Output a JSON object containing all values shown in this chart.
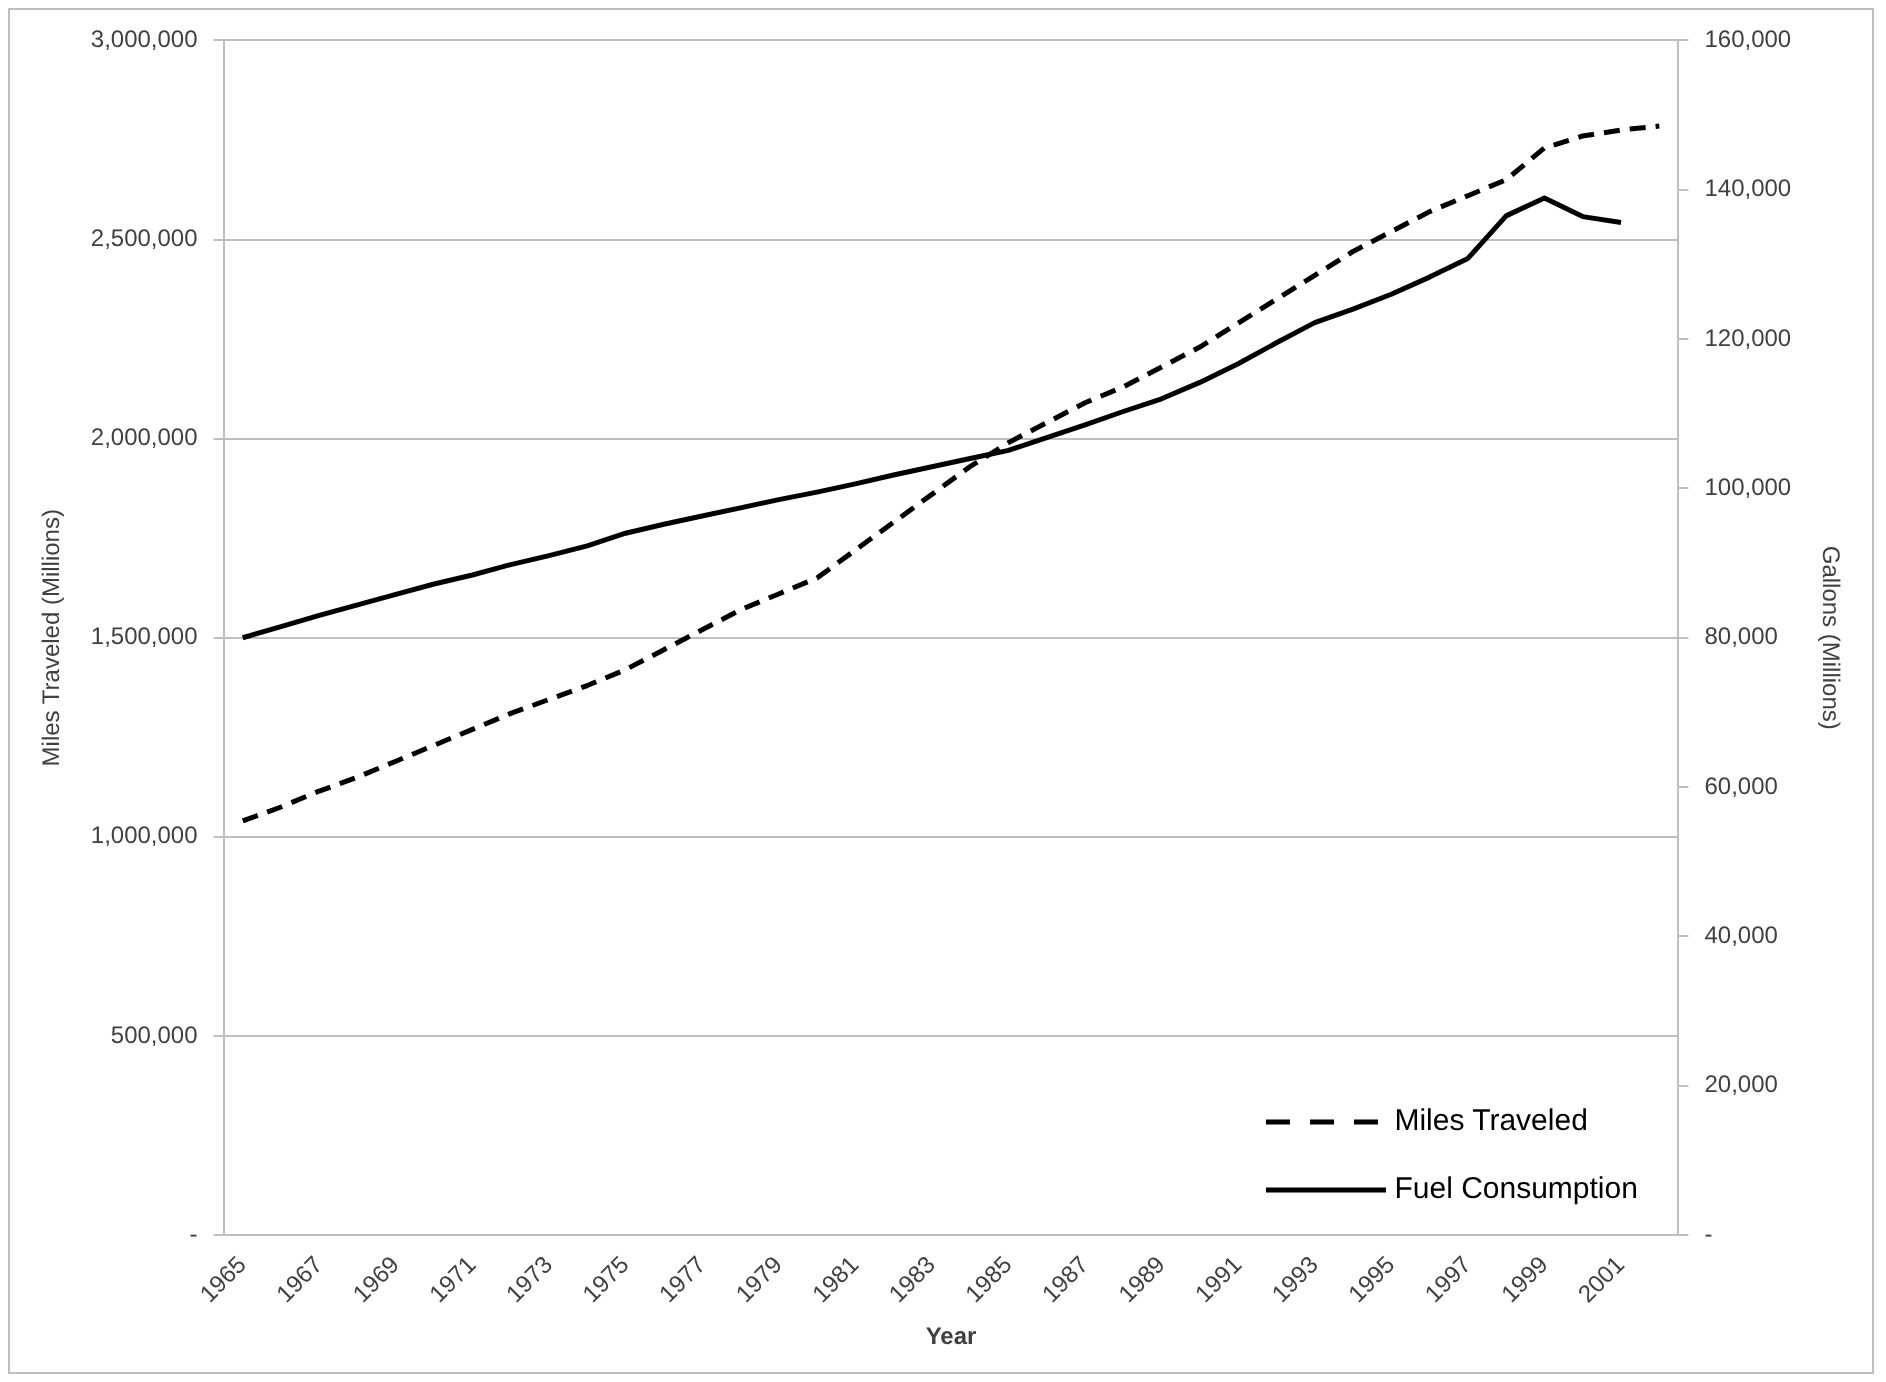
{
  "chart_data": {
    "type": "line",
    "xlabel": "Year",
    "ylabel": "Miles Traveled (Millions)",
    "y2label": "Gallons (Millions)",
    "categories": [
      "1965",
      null,
      "1967",
      null,
      "1969",
      null,
      "1971",
      null,
      "1973",
      null,
      "1975",
      null,
      "1977",
      null,
      "1979",
      null,
      "1981",
      null,
      "1983",
      null,
      "1985",
      null,
      "1987",
      null,
      "1989",
      null,
      "1991",
      null,
      "1993",
      null,
      "1995",
      null,
      "1997",
      null,
      "1999",
      null,
      "2001",
      null
    ],
    "series": [
      {
        "name": "Miles Traveled",
        "color": "#000000",
        "line_style": "dashed",
        "axis": "y",
        "values": [
          1040000,
          1075000,
          1115000,
          1150000,
          1190000,
          1230000,
          1270000,
          1310000,
          1345000,
          1380000,
          1420000,
          1470000,
          1520000,
          1570000,
          1610000,
          1650000,
          1720000,
          1790000,
          1860000,
          1930000,
          1990000,
          2040000,
          2090000,
          2130000,
          2180000,
          2230000,
          2290000,
          2350000,
          2410000,
          2470000,
          2520000,
          2570000,
          2610000,
          2650000,
          2730000,
          2760000,
          2775000,
          2785000
        ]
      },
      {
        "name": "Fuel Consumption",
        "color": "#000000",
        "line_style": "solid",
        "axis": "y2",
        "values": [
          80000,
          81500,
          83000,
          84400,
          85800,
          87200,
          88400,
          89800,
          91000,
          92300,
          94000,
          95200,
          96300,
          97400,
          98500,
          99500,
          100600,
          101800,
          102900,
          104000,
          105100,
          106800,
          108500,
          110300,
          112000,
          114200,
          116700,
          119500,
          122200,
          124000,
          126000,
          128300,
          130800,
          136500,
          138900,
          136400,
          135600,
          null
        ]
      }
    ],
    "ylim": [
      0,
      3000000
    ],
    "yticks": [
      {
        "value": 0,
        "label": "-"
      },
      {
        "value": 500000,
        "label": "500,000"
      },
      {
        "value": 1000000,
        "label": "1,000,000"
      },
      {
        "value": 1500000,
        "label": "1,500,000"
      },
      {
        "value": 2000000,
        "label": "2,000,000"
      },
      {
        "value": 2500000,
        "label": "2,500,000"
      },
      {
        "value": 3000000,
        "label": "3,000,000"
      }
    ],
    "y2lim": [
      0,
      160000
    ],
    "y2ticks": [
      {
        "value": 0,
        "label": "-"
      },
      {
        "value": 20000,
        "label": "20,000"
      },
      {
        "value": 40000,
        "label": "40,000"
      },
      {
        "value": 60000,
        "label": "60,000"
      },
      {
        "value": 80000,
        "label": "80,000"
      },
      {
        "value": 100000,
        "label": "100,000"
      },
      {
        "value": 120000,
        "label": "120,000"
      },
      {
        "value": 140000,
        "label": "140,000"
      },
      {
        "value": 160000,
        "label": "160,000"
      }
    ],
    "grid": "y",
    "legend": "bottom right",
    "marker": "none"
  }
}
